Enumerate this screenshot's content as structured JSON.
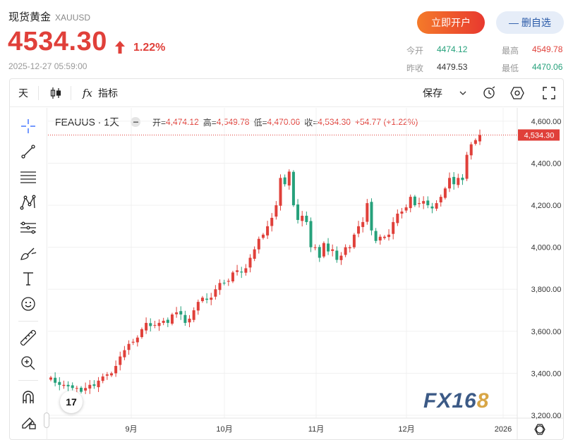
{
  "header": {
    "title": "现货黄金",
    "symbol": "XAUUSD",
    "price": "4534.30",
    "change_pct": "1.22%",
    "timestamp": "2025-12-27 05:59:00",
    "open_account_label": "立即开户",
    "remove_watch_label": "— 删自选",
    "stats": {
      "today_open_label": "今开",
      "today_open": "4474.12",
      "prev_close_label": "昨收",
      "prev_close": "4479.53",
      "high_label": "最高",
      "high": "4549.78",
      "low_label": "最低",
      "low": "4470.06"
    },
    "colors": {
      "up": "#e0403a",
      "down": "#26a17b",
      "stat_high": "#e0403a",
      "stat_low": "#26a17b"
    }
  },
  "toolbar": {
    "interval": "天",
    "indicators_label": "指标",
    "save_label": "保存",
    "icons": [
      "candles-icon",
      "fx-icon",
      "chevron-down-icon",
      "alert-icon",
      "settings-hex-icon",
      "fullscreen-icon"
    ]
  },
  "drawing_tools": [
    "crosshair-icon",
    "trendline-icon",
    "fib-icon",
    "pattern-icon",
    "measure-icon",
    "brush-icon",
    "text-icon",
    "emoji-icon",
    "ruler-icon",
    "zoom-in-icon",
    "magnet-icon",
    "lock-pencil-icon"
  ],
  "legend": {
    "name": "FEAUUS · 1天",
    "open_label": "开=",
    "open": "4,474.12",
    "high_label": "高=",
    "high": "4,549.78",
    "low_label": "低=",
    "low": "4,470.06",
    "close_label": "收=",
    "close": "4,534.30",
    "change": "+54.77 (+1.22%)"
  },
  "watermark": {
    "text_a": "FX16",
    "text_b": "8",
    "tv_logo": "17"
  },
  "chart_data": {
    "type": "candlestick",
    "ylim": [
      3200,
      4650
    ],
    "y_ticks": [
      "4,600.00",
      "4,400.00",
      "4,200.00",
      "4,000.00",
      "3,800.00",
      "3,600.00",
      "3,400.00",
      "3,200.00"
    ],
    "y_tick_values": [
      4600,
      4400,
      4200,
      4000,
      3800,
      3600,
      3400,
      3200
    ],
    "x_ticks": [
      "9月",
      "10月",
      "11月",
      "12月",
      "2026"
    ],
    "last_price_label": "4,534.30",
    "last_price": 4534.3,
    "closes": [
      3380,
      3355,
      3345,
      3345,
      3338,
      3330,
      3330,
      3312,
      3330,
      3345,
      3340,
      3365,
      3385,
      3395,
      3400,
      3435,
      3480,
      3510,
      3540,
      3550,
      3570,
      3610,
      3640,
      3625,
      3630,
      3640,
      3650,
      3640,
      3680,
      3690,
      3680,
      3640,
      3660,
      3700,
      3740,
      3760,
      3750,
      3760,
      3800,
      3830,
      3830,
      3840,
      3880,
      3890,
      3880,
      3900,
      3950,
      3990,
      4040,
      4060,
      4100,
      4140,
      4200,
      4330,
      4300,
      4360,
      4200,
      4130,
      4150,
      4120,
      4000,
      4000,
      3950,
      4020,
      3980,
      3990,
      3940,
      3960,
      4000,
      4000,
      4060,
      4100,
      4120,
      4210,
      4080,
      4030,
      4050,
      4050,
      4060,
      4120,
      4160,
      4170,
      4190,
      4240,
      4200,
      4210,
      4220,
      4200,
      4185,
      4210,
      4240,
      4280,
      4330,
      4300,
      4330,
      4320,
      4440,
      4490,
      4510,
      4534.3
    ]
  }
}
